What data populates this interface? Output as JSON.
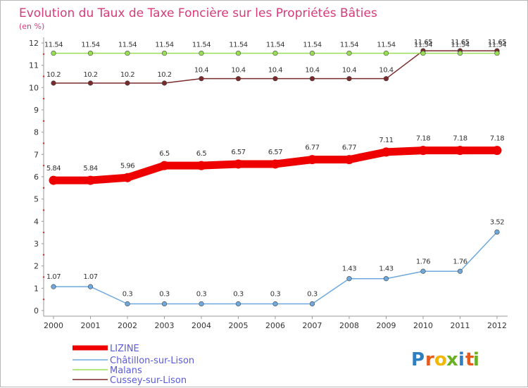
{
  "chart_data": {
    "type": "line",
    "title": "Evolution du Taux de Taxe Foncière sur les Propriétés Bâties",
    "subtitle": "(en %)",
    "x": [
      "2000",
      "2001",
      "2002",
      "2003",
      "2004",
      "2005",
      "2006",
      "2007",
      "2008",
      "2009",
      "2010",
      "2011",
      "2012"
    ],
    "ylim": [
      0,
      12
    ],
    "yticks": [
      "0",
      "1",
      "2",
      "3",
      "4",
      "5",
      "6",
      "7",
      "8",
      "9",
      "10",
      "11",
      "12"
    ],
    "grid": false,
    "legend_position": "bottom-left",
    "series": [
      {
        "name": "LIZINE",
        "color": "#ee0000",
        "values": [
          5.84,
          5.84,
          5.96,
          6.5,
          6.5,
          6.57,
          6.57,
          6.77,
          6.77,
          7.11,
          7.18,
          7.18,
          7.18
        ],
        "labels": [
          "5.84",
          "5.84",
          "5.96",
          "6.5",
          "6.5",
          "6.57",
          "6.57",
          "6.77",
          "6.77",
          "7.11",
          "7.18",
          "7.18",
          "7.18"
        ]
      },
      {
        "name": "Châtillon-sur-Lison",
        "color": "#6fa8dc",
        "values": [
          1.07,
          1.07,
          0.3,
          0.3,
          0.3,
          0.3,
          0.3,
          0.3,
          1.43,
          1.43,
          1.76,
          1.76,
          3.52
        ],
        "labels": [
          "1.07",
          "1.07",
          "0.3",
          "0.3",
          "0.3",
          "0.3",
          "0.3",
          "0.3",
          "1.43",
          "1.43",
          "1.76",
          "1.76",
          "3.52"
        ]
      },
      {
        "name": "Malans",
        "color": "#99dd55",
        "values": [
          11.54,
          11.54,
          11.54,
          11.54,
          11.54,
          11.54,
          11.54,
          11.54,
          11.54,
          11.54,
          11.54,
          11.54,
          11.54
        ],
        "labels": [
          "11.54",
          "11.54",
          "11.54",
          "11.54",
          "11.54",
          "11.54",
          "11.54",
          "11.54",
          "11.54",
          "11.54",
          "11.54",
          "11.54",
          "11.54"
        ]
      },
      {
        "name": "Cussey-sur-Lison",
        "color": "#7a2a2a",
        "values": [
          10.2,
          10.2,
          10.2,
          10.2,
          10.4,
          10.4,
          10.4,
          10.4,
          10.4,
          10.4,
          11.65,
          11.65,
          11.65
        ],
        "labels": [
          "10.2",
          "10.2",
          "10.2",
          "10.2",
          "10.4",
          "10.4",
          "10.4",
          "10.4",
          "10.4",
          "10.4",
          "11.65",
          "11.65",
          "11.65"
        ]
      }
    ]
  },
  "logo": {
    "text": "Proxiti",
    "colors": [
      "#2e7fc1",
      "#e85a1b",
      "#f2b705",
      "#6ab023",
      "#2e7fc1",
      "#e85a1b",
      "#6ab023"
    ]
  }
}
